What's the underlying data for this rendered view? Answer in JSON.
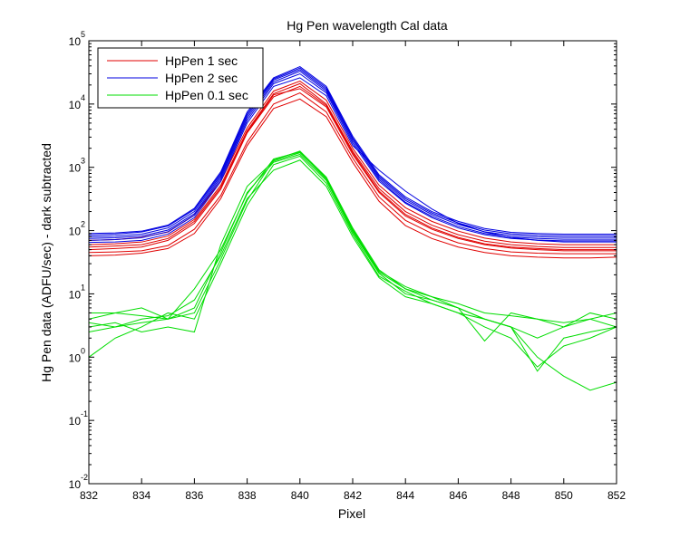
{
  "chart_data": {
    "type": "line",
    "title": "Hg Pen wavelength Cal data",
    "xlabel": "Pixel",
    "ylabel": "Hg Pen data (ADFU/sec) - dark subtracted",
    "yscale": "log",
    "xlim": [
      832,
      852
    ],
    "ylim": [
      0.01,
      100000
    ],
    "x_ticks": [
      "832",
      "834",
      "836",
      "838",
      "840",
      "842",
      "844",
      "846",
      "848",
      "850",
      "852"
    ],
    "y_ticks": [
      {
        "base": "10",
        "exp": "-2"
      },
      {
        "base": "10",
        "exp": "-1"
      },
      {
        "base": "10",
        "exp": "0"
      },
      {
        "base": "10",
        "exp": "1"
      },
      {
        "base": "10",
        "exp": "2"
      },
      {
        "base": "10",
        "exp": "3"
      },
      {
        "base": "10",
        "exp": "4"
      },
      {
        "base": "10",
        "exp": "5"
      }
    ],
    "grid": false,
    "legend_position": "top-left",
    "x": [
      832,
      833,
      834,
      835,
      836,
      837,
      838,
      839,
      840,
      841,
      842,
      843,
      844,
      845,
      846,
      847,
      848,
      849,
      850,
      851,
      852
    ],
    "series": [
      {
        "name": "HpPen 1 sec",
        "color": "#e00000",
        "traces": [
          [
            50,
            52,
            55,
            70,
            130,
            450,
            3500,
            13000,
            19000,
            9500,
            1700,
            420,
            180,
            110,
            78,
            62,
            55,
            52,
            50,
            50,
            50
          ],
          [
            60,
            62,
            66,
            82,
            150,
            520,
            3800,
            14500,
            21000,
            10000,
            1800,
            460,
            200,
            122,
            86,
            68,
            60,
            56,
            54,
            54,
            54
          ],
          [
            70,
            72,
            78,
            95,
            175,
            600,
            4200,
            16000,
            23000,
            11500,
            2000,
            520,
            230,
            140,
            98,
            76,
            66,
            62,
            60,
            60,
            60
          ],
          [
            45,
            46,
            48,
            58,
            105,
            360,
            2500,
            10000,
            15000,
            7500,
            1400,
            340,
            145,
            90,
            64,
            52,
            46,
            44,
            43,
            43,
            43
          ],
          [
            40,
            41,
            44,
            52,
            90,
            320,
            2200,
            8500,
            12000,
            6300,
            1200,
            290,
            120,
            75,
            55,
            45,
            40,
            38,
            37,
            37,
            38
          ],
          [
            55,
            57,
            60,
            75,
            140,
            480,
            3600,
            14000,
            17500,
            9000,
            1600,
            400,
            170,
            105,
            75,
            60,
            53,
            50,
            48,
            48,
            48
          ]
        ]
      },
      {
        "name": "HpPen 2 sec",
        "color": "#0000e0",
        "traces": [
          [
            80,
            82,
            88,
            110,
            200,
            750,
            6500,
            24000,
            35000,
            17000,
            2800,
            680,
            300,
            180,
            125,
            96,
            84,
            80,
            78,
            78,
            78
          ],
          [
            75,
            77,
            82,
            102,
            185,
            700,
            6000,
            22500,
            33000,
            16000,
            2600,
            640,
            280,
            168,
            116,
            90,
            79,
            75,
            73,
            73,
            73
          ],
          [
            85,
            88,
            95,
            118,
            215,
            800,
            7000,
            25000,
            37000,
            18000,
            2900,
            720,
            320,
            190,
            132,
            102,
            89,
            85,
            83,
            83,
            83
          ],
          [
            70,
            72,
            77,
            96,
            175,
            650,
            5500,
            21000,
            30000,
            15000,
            2400,
            600,
            270,
            160,
            110,
            86,
            75,
            71,
            69,
            69,
            69
          ],
          [
            65,
            66,
            70,
            88,
            160,
            600,
            5000,
            19000,
            26000,
            13500,
            2200,
            900,
            420,
            220,
            130,
            95,
            78,
            70,
            66,
            66,
            66
          ],
          [
            90,
            92,
            98,
            122,
            225,
            850,
            7500,
            26000,
            39000,
            19000,
            3100,
            760,
            340,
            200,
            140,
            108,
            94,
            90,
            88,
            88,
            88
          ]
        ]
      },
      {
        "name": "HpPen 0.1 sec",
        "color": "#00dd00",
        "traces": [
          [
            4,
            5,
            4.5,
            4,
            5,
            35,
            300,
            1300,
            1800,
            700,
            110,
            24,
            12,
            9,
            7,
            5,
            4.5,
            4,
            3.5,
            4,
            5
          ],
          [
            2.5,
            3,
            3.5,
            4,
            6,
            45,
            400,
            1200,
            1600,
            620,
            95,
            21,
            10,
            8,
            6,
            4,
            3,
            2,
            3,
            4,
            3
          ],
          [
            1,
            2,
            3,
            5,
            4,
            30,
            250,
            1100,
            1500,
            560,
            88,
            19,
            11,
            7,
            5,
            3,
            2,
            0.7,
            1.5,
            2,
            3
          ],
          [
            3,
            3.5,
            2.5,
            3,
            2.5,
            60,
            500,
            1250,
            1700,
            680,
            105,
            23,
            13,
            9,
            6,
            4,
            3,
            1,
            0.5,
            0.3,
            0.4
          ],
          [
            5,
            5,
            6,
            4,
            12,
            50,
            380,
            1350,
            1750,
            650,
            100,
            22,
            12,
            8,
            6,
            1.8,
            5,
            4,
            3,
            5,
            4
          ],
          [
            3.5,
            3,
            4,
            4.5,
            8,
            40,
            320,
            900,
            1300,
            500,
            80,
            18,
            9,
            7,
            5,
            4,
            3,
            0.6,
            2,
            2.5,
            3
          ]
        ]
      }
    ]
  }
}
